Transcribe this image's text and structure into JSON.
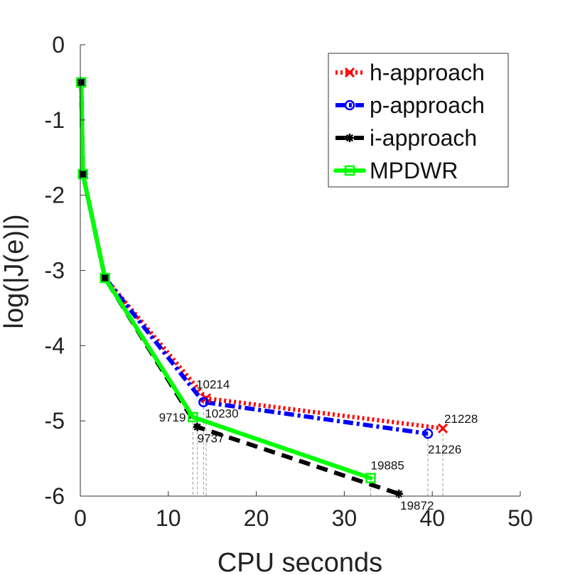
{
  "chart_data": {
    "type": "line",
    "title": "",
    "xlabel": "CPU seconds",
    "ylabel": "log(|J(e)|)",
    "xlim": [
      0,
      50
    ],
    "ylim": [
      -6,
      0
    ],
    "xticks": [
      "0",
      "10",
      "20",
      "30",
      "40",
      "50"
    ],
    "yticks": [
      "0",
      "-1",
      "-2",
      "-3",
      "-4",
      "-5",
      "-6"
    ],
    "grid": false,
    "legend_position": "top-right",
    "series": [
      {
        "name": "h-approach",
        "color": "#ff0000",
        "line_style": "dotted",
        "marker": "x",
        "points": [
          [
            0.1,
            -0.5
          ],
          [
            0.3,
            -1.72
          ],
          [
            2.8,
            -3.1
          ],
          [
            14.3,
            -4.7
          ],
          [
            41.2,
            -5.1
          ]
        ]
      },
      {
        "name": "p-approach",
        "color": "#0000ff",
        "line_style": "dash-dot",
        "marker": "circle",
        "points": [
          [
            0.1,
            -0.5
          ],
          [
            0.3,
            -1.72
          ],
          [
            2.8,
            -3.1
          ],
          [
            14.0,
            -4.75
          ],
          [
            39.5,
            -5.17
          ]
        ]
      },
      {
        "name": "i-approach",
        "color": "#000000",
        "line_style": "dashed",
        "marker": "star",
        "points": [
          [
            0.1,
            -0.5
          ],
          [
            0.3,
            -1.72
          ],
          [
            2.8,
            -3.1
          ],
          [
            13.3,
            -5.08
          ],
          [
            36.2,
            -5.97
          ]
        ]
      },
      {
        "name": "MPDWR",
        "color": "#00ff00",
        "line_style": "solid",
        "marker": "square",
        "points": [
          [
            0.1,
            -0.5
          ],
          [
            0.3,
            -1.72
          ],
          [
            2.8,
            -3.1
          ],
          [
            12.8,
            -4.95
          ],
          [
            33.0,
            -5.76
          ]
        ]
      }
    ],
    "annotations": [
      {
        "text": "10214",
        "x": 14.3,
        "y": -4.7
      },
      {
        "text": "10230",
        "x": 14.0,
        "y": -4.75
      },
      {
        "text": "9719",
        "x": 12.8,
        "y": -4.95
      },
      {
        "text": "9737",
        "x": 13.3,
        "y": -5.08
      },
      {
        "text": "21228",
        "x": 41.2,
        "y": -5.1
      },
      {
        "text": "21226",
        "x": 39.5,
        "y": -5.17
      },
      {
        "text": "19885",
        "x": 33.0,
        "y": -5.76
      },
      {
        "text": "19872",
        "x": 36.2,
        "y": -5.97
      }
    ],
    "guide_lines_x": [
      12.8,
      13.3,
      14.0,
      14.3,
      33.0,
      39.5,
      41.2
    ]
  }
}
